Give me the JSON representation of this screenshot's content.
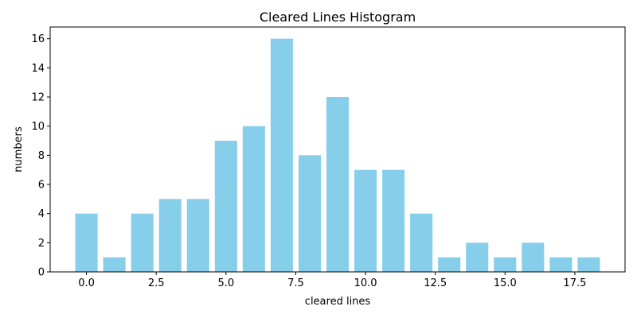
{
  "chart_data": {
    "type": "bar",
    "title": "Cleared Lines Histogram",
    "xlabel": "cleared lines",
    "ylabel": "numbers",
    "x": [
      0,
      1,
      2,
      3,
      4,
      5,
      6,
      7,
      8,
      9,
      10,
      11,
      12,
      13,
      14,
      15,
      16,
      17,
      18
    ],
    "values": [
      4,
      1,
      4,
      5,
      5,
      9,
      10,
      16,
      8,
      12,
      7,
      7,
      4,
      1,
      2,
      1,
      2,
      1,
      1
    ],
    "xlim": [
      -1.3,
      19.3
    ],
    "ylim": [
      0,
      16.8
    ],
    "xticks": [
      0.0,
      2.5,
      5.0,
      7.5,
      10.0,
      12.5,
      15.0,
      17.5
    ],
    "xtick_labels": [
      "0.0",
      "2.5",
      "5.0",
      "7.5",
      "10.0",
      "12.5",
      "15.0",
      "17.5"
    ],
    "yticks": [
      0,
      2,
      4,
      6,
      8,
      10,
      12,
      14,
      16
    ],
    "ytick_labels": [
      "0",
      "2",
      "4",
      "6",
      "8",
      "10",
      "12",
      "14",
      "16"
    ],
    "grid": false,
    "bar_color": "#87ceeb"
  }
}
